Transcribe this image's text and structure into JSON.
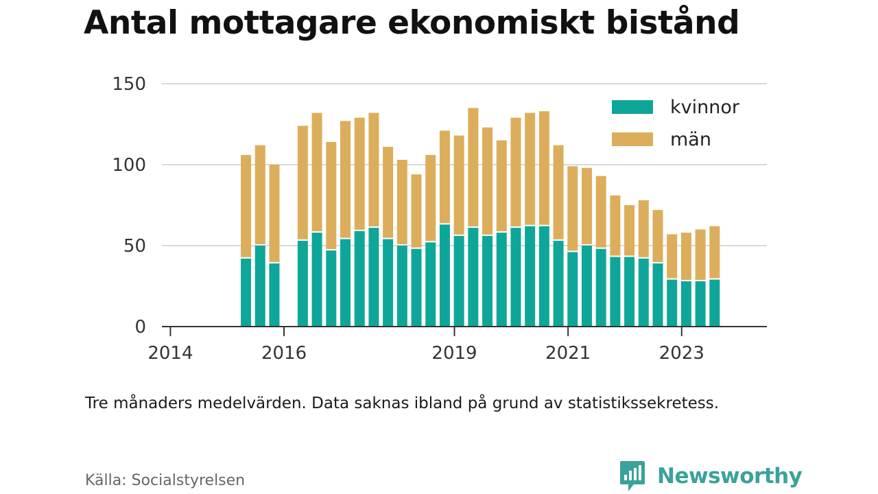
{
  "title": "Antal mottagare ekonomiskt bistånd",
  "note": "Tre månaders medelvärden. Data saknas ibland på grund av statistikssekretess.",
  "source": "Källa: Socialstyrelsen",
  "brand": {
    "name": "Newsworthy",
    "icon": "newsworthy-logo-icon",
    "color": "#3aa29b"
  },
  "chart_data": {
    "type": "bar",
    "stacked": true,
    "x_unit": "year",
    "xlim": [
      2013.85,
      2024.5
    ],
    "ylim": [
      0,
      150
    ],
    "y_ticks": [
      0,
      50,
      100,
      150
    ],
    "x_ticks": [
      {
        "value": 2014,
        "label": "2014"
      },
      {
        "value": 2016,
        "label": "2016"
      },
      {
        "value": 2019,
        "label": "2019"
      },
      {
        "value": 2021,
        "label": "2021"
      },
      {
        "value": 2023,
        "label": "2023"
      }
    ],
    "grid": true,
    "legend_position": "top-right",
    "x": [
      2015.33,
      2015.58,
      2015.83,
      2016.33,
      2016.58,
      2016.83,
      2017.08,
      2017.33,
      2017.58,
      2017.83,
      2018.08,
      2018.33,
      2018.58,
      2018.83,
      2019.08,
      2019.33,
      2019.58,
      2019.83,
      2020.08,
      2020.33,
      2020.58,
      2020.83,
      2021.08,
      2021.33,
      2021.58,
      2021.83,
      2022.08,
      2022.33,
      2022.58,
      2022.83,
      2023.08,
      2023.33,
      2023.58
    ],
    "series": [
      {
        "name": "kvinnor",
        "color": "#0fa69a",
        "values": [
          42,
          50,
          39,
          53,
          58,
          47,
          54,
          59,
          61,
          54,
          50,
          48,
          52,
          63,
          56,
          61,
          56,
          58,
          61,
          62,
          62,
          53,
          46,
          50,
          48,
          43,
          43,
          42,
          39,
          29,
          28,
          28,
          29
        ]
      },
      {
        "name": "män",
        "color": "#dcae5b",
        "values": [
          64,
          62,
          61,
          71,
          74,
          67,
          73,
          70,
          71,
          57,
          53,
          46,
          54,
          58,
          62,
          74,
          67,
          57,
          68,
          70,
          71,
          59,
          53,
          48,
          45,
          38,
          32,
          36,
          33,
          28,
          30,
          32,
          33
        ]
      }
    ]
  }
}
